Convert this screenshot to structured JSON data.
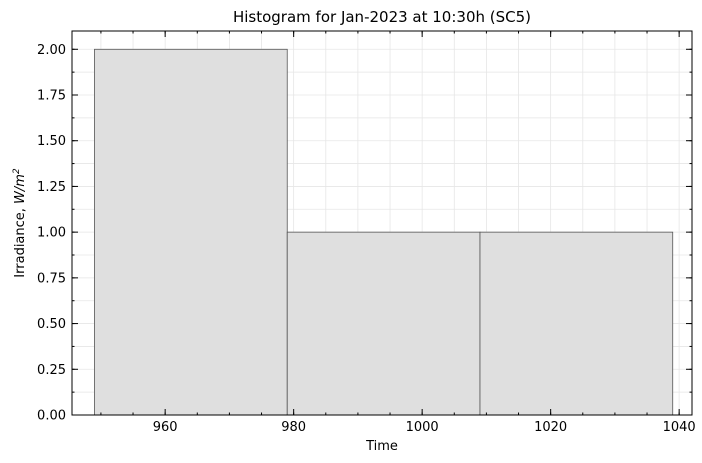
{
  "chart_data": {
    "type": "bar",
    "title": "Histogram for Jan-2023 at 10:30h (SC5)",
    "xlabel": "Time",
    "ylabel_main": "Irradiance, ",
    "ylabel_unit": "W/m",
    "ylabel_exp": "2",
    "xlim": [
      945.5,
      1042
    ],
    "ylim": [
      0,
      2.1
    ],
    "xticks": [
      960,
      980,
      1000,
      1020,
      1040
    ],
    "yticks": [
      0.0,
      0.25,
      0.5,
      0.75,
      1.0,
      1.25,
      1.5,
      1.75,
      2.0
    ],
    "ytick_labels": [
      "0.00",
      "0.25",
      "0.50",
      "0.75",
      "1.00",
      "1.25",
      "1.50",
      "1.75",
      "2.00"
    ],
    "grid": true,
    "bars": [
      {
        "start": 949,
        "end": 979,
        "value": 2
      },
      {
        "start": 979,
        "end": 1009,
        "value": 1
      },
      {
        "start": 1009,
        "end": 1039,
        "value": 1
      }
    ],
    "colors": {
      "bar_fill": "#dfdfdf",
      "bar_edge": "#555555"
    }
  }
}
